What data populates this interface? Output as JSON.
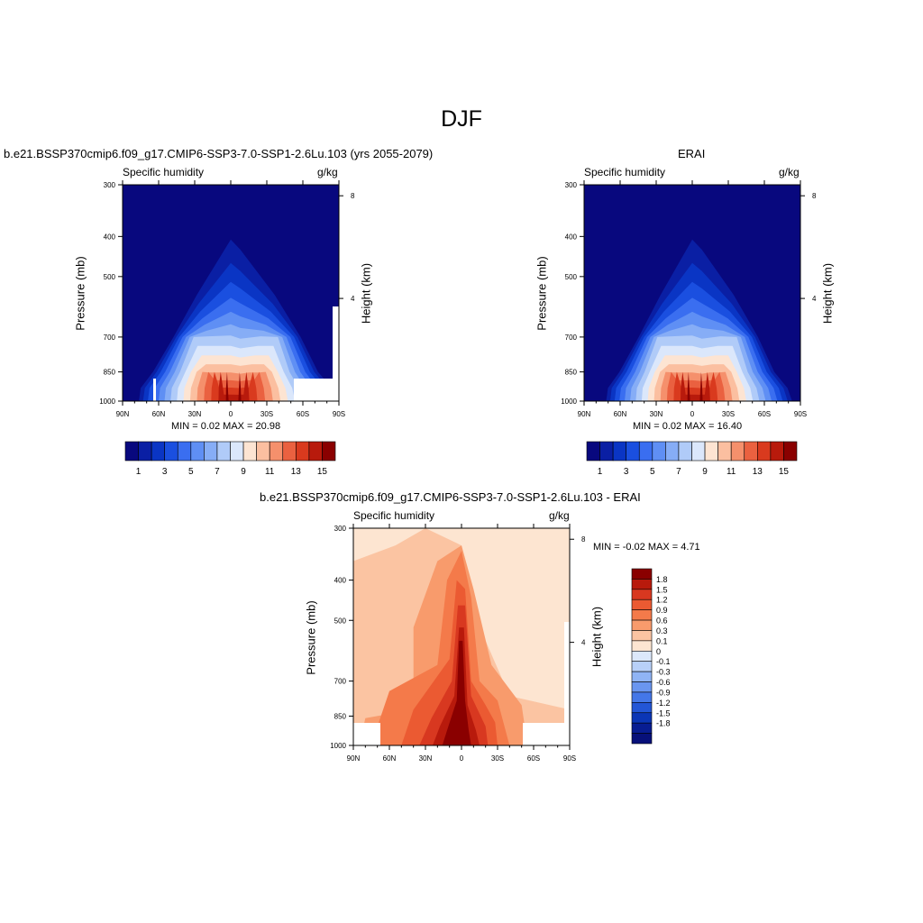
{
  "main_title": "DJF",
  "chart_data": [
    {
      "type": "heatmap",
      "panel": "top-left",
      "title": "b.e21.BSSP370cmip6.f09_g17.CMIP6-SSP3-7.0-SSP1-2.6Lu.103 (yrs 2055-2079)",
      "subtitle_left": "Specific humidity",
      "subtitle_right": "g/kg",
      "ylabel": "Pressure (mb)",
      "ylabel_right": "Height (km)",
      "x_ticks": [
        "90N",
        "60N",
        "30N",
        "0",
        "30S",
        "60S",
        "90S"
      ],
      "y_ticks": [
        "300",
        "400",
        "500",
        "700",
        "850",
        "1000"
      ],
      "height_ticks": [
        "8",
        "4"
      ],
      "min_text": "MIN =   0.02  MAX =  20.98",
      "min": 0.02,
      "max": 20.98,
      "levels": [
        1,
        2,
        3,
        4,
        5,
        6,
        7,
        8,
        9,
        10,
        11,
        12,
        13,
        14,
        15
      ],
      "colorbar_labels": [
        "1",
        "3",
        "5",
        "7",
        "9",
        "11",
        "13",
        "15"
      ],
      "peak_value": 20.98,
      "peak_lat": -2,
      "peak_pressure": 1000
    },
    {
      "type": "heatmap",
      "panel": "top-right",
      "title": "ERAI",
      "subtitle_left": "Specific humidity",
      "subtitle_right": "g/kg",
      "ylabel": "Pressure (mb)",
      "ylabel_right": "Height (km)",
      "x_ticks": [
        "90N",
        "60N",
        "30N",
        "0",
        "30S",
        "60S",
        "90S"
      ],
      "y_ticks": [
        "300",
        "400",
        "500",
        "700",
        "850",
        "1000"
      ],
      "height_ticks": [
        "8",
        "4"
      ],
      "min_text": "MIN =   0.02  MAX =  16.40",
      "min": 0.02,
      "max": 16.4,
      "levels": [
        1,
        2,
        3,
        4,
        5,
        6,
        7,
        8,
        9,
        10,
        11,
        12,
        13,
        14,
        15
      ],
      "colorbar_labels": [
        "1",
        "3",
        "5",
        "7",
        "9",
        "11",
        "13",
        "15"
      ],
      "peak_value": 16.4,
      "peak_lat": -2,
      "peak_pressure": 1000
    },
    {
      "type": "heatmap",
      "panel": "bottom",
      "title": "b.e21.BSSP370cmip6.f09_g17.CMIP6-SSP3-7.0-SSP1-2.6Lu.103 - ERAI",
      "subtitle_left": "Specific humidity",
      "subtitle_right": "g/kg",
      "ylabel": "Pressure (mb)",
      "ylabel_right": "Height (km)",
      "x_ticks": [
        "90N",
        "60N",
        "30N",
        "0",
        "30S",
        "60S",
        "90S"
      ],
      "y_ticks": [
        "300",
        "400",
        "500",
        "700",
        "850",
        "1000"
      ],
      "height_ticks": [
        "8",
        "4"
      ],
      "min_text": "MIN =  -0.02  MAX =   4.71",
      "min": -0.02,
      "max": 4.71,
      "levels": [
        -1.8,
        -1.5,
        -1.2,
        -0.9,
        -0.6,
        -0.3,
        -0.1,
        0,
        0.1,
        0.3,
        0.6,
        0.9,
        1.2,
        1.5,
        1.8
      ],
      "colorbar_labels": [
        "1.8",
        "1.5",
        "1.2",
        "0.9",
        "0.6",
        "0.3",
        "0.1",
        "0",
        "-0.1",
        "-0.3",
        "-0.6",
        "-0.9",
        "-1.2",
        "-1.5",
        "-1.8"
      ]
    }
  ],
  "colors": {
    "top_palette": [
      "#08087e",
      "#0a1fa4",
      "#0a35c4",
      "#1a4fe0",
      "#3a6ef0",
      "#5f8ff4",
      "#86adf6",
      "#b0cbf8",
      "#dbe7fb",
      "#fde4d2",
      "#fbbfa0",
      "#f5906c",
      "#ea6140",
      "#d93a1e",
      "#b81a0c",
      "#8a0000"
    ],
    "diff_palette": [
      "#8a0000",
      "#b81a0c",
      "#d83820",
      "#eb5a32",
      "#f47a4a",
      "#f89b6c",
      "#fbc4a2",
      "#fde5d1",
      "#dce8fb",
      "#b8d0f8",
      "#90b4f5",
      "#6a96f0",
      "#4477e8",
      "#2356d6",
      "#0b36b6",
      "#081d92",
      "#07107a"
    ]
  }
}
